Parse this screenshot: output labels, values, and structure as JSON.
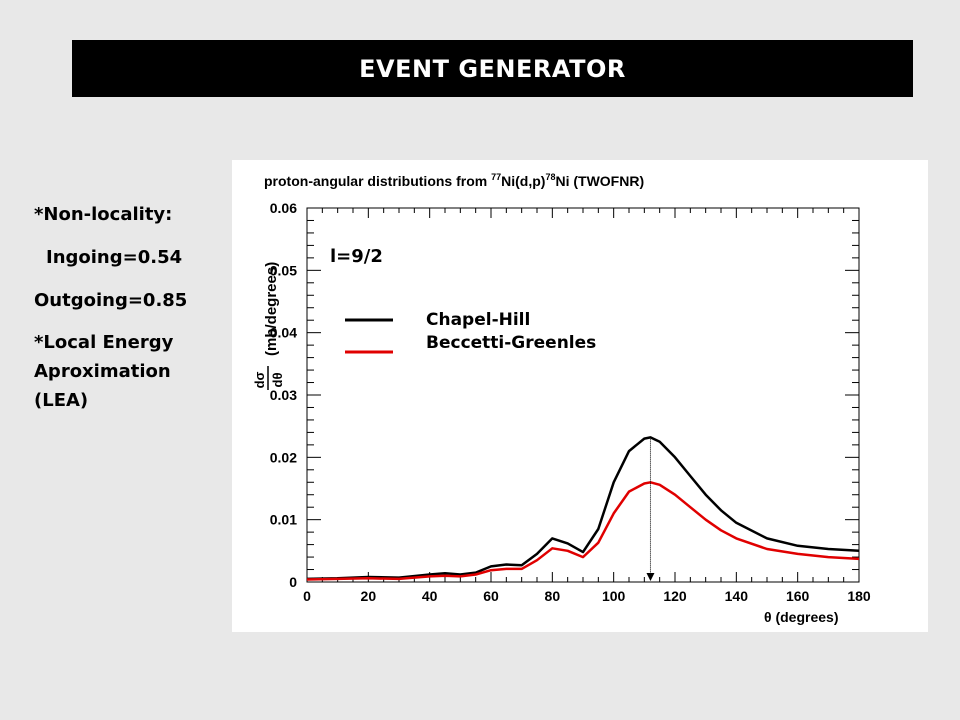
{
  "banner": {
    "title": "EVENT GENERATOR"
  },
  "notes": {
    "nonlocality": "*Non-locality:",
    "ingoing": "Ingoing=0.54",
    "outgoing": "Outgoing=0.85",
    "lea_line1": "*Local Energy",
    "lea_line2": "Aproximation",
    "lea_line3": "(LEA)"
  },
  "chart_data": {
    "type": "line",
    "title_prefix": "proton-angular distributions from ",
    "title_sup1": "77",
    "title_mid": "Ni(d,p)",
    "title_sup2": "78",
    "title_suffix": "Ni (TWOFNR)",
    "xlabel": "θ (degrees)",
    "ylabel_frac_num": "dσ",
    "ylabel_frac_den": "dθ",
    "ylabel": "(mb/degrees)",
    "annotation": "l=9/2",
    "xlim": [
      0,
      180
    ],
    "ylim": [
      0,
      0.06
    ],
    "xticks": [
      "0",
      "20",
      "40",
      "60",
      "80",
      "100",
      "120",
      "140",
      "160",
      "180"
    ],
    "yticks": [
      "0",
      "0.01",
      "0.02",
      "0.03",
      "0.04",
      "0.05",
      "0.06"
    ],
    "marker_x": 112,
    "series": [
      {
        "name": "Chapel-Hill",
        "color": "#000000",
        "x": [
          0,
          10,
          20,
          30,
          40,
          45,
          50,
          55,
          60,
          65,
          70,
          75,
          80,
          85,
          90,
          95,
          100,
          105,
          110,
          112,
          115,
          120,
          125,
          130,
          135,
          140,
          150,
          160,
          170,
          180
        ],
        "y": [
          0.0005,
          0.0006,
          0.0008,
          0.0007,
          0.0012,
          0.0014,
          0.0012,
          0.0015,
          0.0025,
          0.0028,
          0.0027,
          0.0045,
          0.007,
          0.0062,
          0.0048,
          0.0085,
          0.016,
          0.021,
          0.023,
          0.0232,
          0.0225,
          0.02,
          0.017,
          0.014,
          0.0115,
          0.0095,
          0.007,
          0.0058,
          0.0053,
          0.005
        ]
      },
      {
        "name": "Beccetti-Greenles",
        "color": "#e00000",
        "x": [
          0,
          10,
          20,
          30,
          40,
          45,
          50,
          55,
          60,
          65,
          70,
          75,
          80,
          85,
          90,
          95,
          100,
          105,
          110,
          112,
          115,
          120,
          125,
          130,
          135,
          140,
          150,
          160,
          170,
          180
        ],
        "y": [
          0.0004,
          0.0005,
          0.0006,
          0.0005,
          0.0009,
          0.001,
          0.0009,
          0.0012,
          0.0019,
          0.0021,
          0.0021,
          0.0035,
          0.0054,
          0.005,
          0.004,
          0.0063,
          0.011,
          0.0145,
          0.0158,
          0.016,
          0.0156,
          0.014,
          0.012,
          0.01,
          0.0083,
          0.007,
          0.0053,
          0.0045,
          0.004,
          0.0037
        ]
      }
    ]
  }
}
